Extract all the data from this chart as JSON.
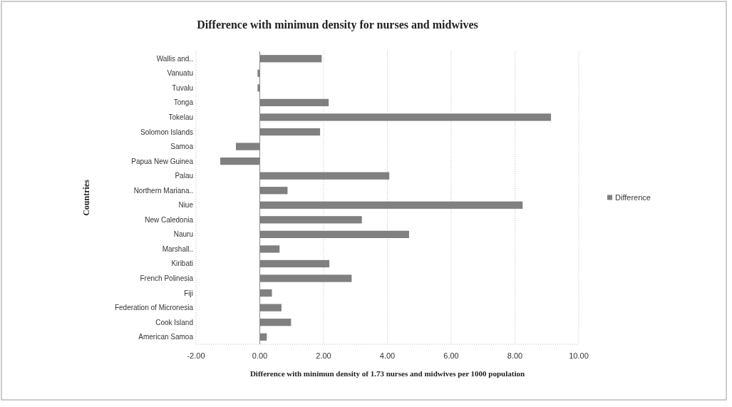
{
  "chart_data": {
    "type": "bar",
    "orientation": "horizontal",
    "title": "Difference with minimun density for nurses and midwives",
    "xlabel": "Difference with minimun density of 1.73 nurses and midwives per 1000 population",
    "ylabel": "Countries",
    "categories": [
      "Wallis and..",
      "Vanuatu",
      "Tuvalu",
      "Tonga",
      "Tokelau",
      "Solomon Islands",
      "Samoa",
      "Papua New Guinea",
      "Palau",
      "Northern Mariana..",
      "Niue",
      "New Caledonia",
      "Nauru",
      "Marshall..",
      "Kiribati",
      "French Polinesia",
      "Fiji",
      "Federation of Micronesia",
      "Cook Island",
      "American Samoa"
    ],
    "series": [
      {
        "name": "Difference",
        "color": "#808080",
        "values": [
          1.94,
          -0.07,
          -0.07,
          2.16,
          9.13,
          1.89,
          -0.75,
          -1.24,
          4.06,
          0.87,
          8.24,
          3.2,
          4.68,
          0.62,
          2.18,
          2.88,
          0.38,
          0.68,
          0.98,
          0.22
        ]
      }
    ],
    "xlim": [
      -2,
      10
    ],
    "xticks": [
      {
        "value": -2,
        "label": "-2.00"
      },
      {
        "value": 0,
        "label": "0.00"
      },
      {
        "value": 2,
        "label": "2.00"
      },
      {
        "value": 4,
        "label": "4.00"
      },
      {
        "value": 6,
        "label": "6.00"
      },
      {
        "value": 8,
        "label": "8.00"
      },
      {
        "value": 10,
        "label": "10.00"
      }
    ],
    "grid": "x",
    "legend": "right"
  }
}
